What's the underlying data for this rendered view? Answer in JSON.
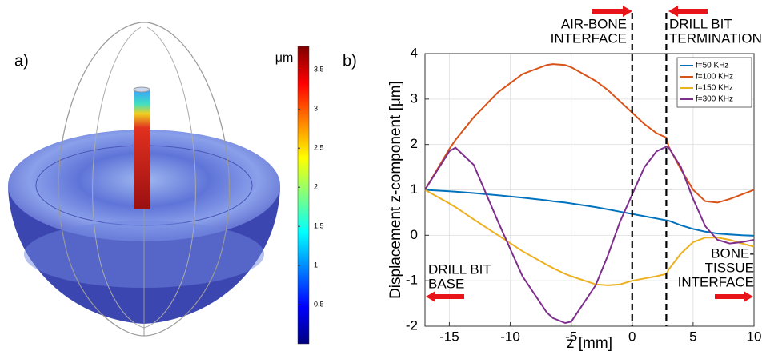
{
  "chart_data": [
    {
      "type": "colorbar",
      "panel_label": "a)",
      "unit": "μm",
      "clim": [
        0,
        3.8
      ],
      "ticks": [
        0.5,
        1,
        1.5,
        2,
        2.5,
        3,
        3.5
      ]
    },
    {
      "type": "line",
      "panel_label": "b)",
      "xlabel": "z [mm]",
      "ylabel": "Displacement  z-component [μm]",
      "x": [
        -17,
        -15,
        -14.5,
        -13,
        -11,
        -9,
        -7,
        -6.5,
        -5.5,
        -5,
        -3,
        -2,
        -1,
        0,
        1,
        2,
        2.8,
        3,
        4,
        5,
        6,
        7,
        8,
        9,
        10
      ],
      "series": [
        {
          "name": "f=50 KHz",
          "color": "#0072bd",
          "values": [
            1,
            0.97,
            0.96,
            0.93,
            0.88,
            0.83,
            0.77,
            0.75,
            0.72,
            0.7,
            0.62,
            0.57,
            0.52,
            0.47,
            0.42,
            0.37,
            0.33,
            0.32,
            0.22,
            0.14,
            0.08,
            0.04,
            0.02,
            0,
            -0.01
          ]
        },
        {
          "name": "f=100 KHz",
          "color": "#d95319",
          "values": [
            1,
            1.9,
            2.1,
            2.6,
            3.15,
            3.55,
            3.75,
            3.77,
            3.75,
            3.7,
            3.4,
            3.2,
            2.95,
            2.7,
            2.45,
            2.25,
            2.15,
            1.95,
            1.45,
            1.0,
            0.75,
            0.72,
            0.8,
            0.9,
            1.0
          ]
        },
        {
          "name": "f=150 KHz",
          "color": "#edb120",
          "values": [
            1,
            0.7,
            0.62,
            0.35,
            0,
            -0.35,
            -0.65,
            -0.72,
            -0.85,
            -0.9,
            -1.08,
            -1.1,
            -1.08,
            -1.0,
            -0.95,
            -0.9,
            -0.85,
            -0.75,
            -0.4,
            -0.15,
            -0.05,
            -0.05,
            -0.1,
            -0.18,
            -0.25
          ]
        },
        {
          "name": "f=300 KHz",
          "color": "#7e2f8e",
          "values": [
            1,
            1.85,
            1.93,
            1.55,
            0.3,
            -0.9,
            -1.7,
            -1.82,
            -1.93,
            -1.9,
            -1.1,
            -0.45,
            0.3,
            0.9,
            1.5,
            1.85,
            1.95,
            1.93,
            1.5,
            0.8,
            0.2,
            -0.1,
            -0.18,
            -0.15,
            -0.1
          ]
        }
      ],
      "xlim": [
        -17,
        10
      ],
      "ylim": [
        -2,
        4
      ],
      "xticks": [
        -15,
        -10,
        -5,
        0,
        5,
        10
      ],
      "yticks": [
        -2,
        -1,
        0,
        1,
        2,
        3,
        4
      ],
      "grid": true,
      "legend": "upper right",
      "vlines": [
        0,
        2.8
      ],
      "annotations": [
        [
          "AIR-BONE",
          "INTERFACE"
        ],
        [
          "DRILL BIT",
          "TERMINATION"
        ],
        [
          "DRILL BIT",
          "BASE"
        ],
        [
          "BONE-",
          "TISSUE",
          "INTERFACE"
        ]
      ]
    }
  ]
}
